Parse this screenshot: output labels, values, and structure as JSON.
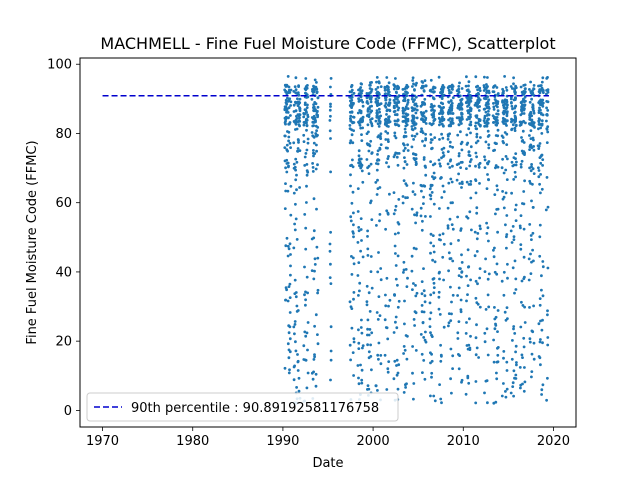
{
  "chart_data": {
    "type": "scatter",
    "title": "MACHMELL - Fine Fuel Moisture Code (FFMC), Scatterplot",
    "xlabel": "Date",
    "ylabel": "Fine Fuel Moisture Code (FFMC)",
    "xlim": [
      1967.5,
      2022.5
    ],
    "ylim": [
      -4.8,
      101.8
    ],
    "x_ticks": [
      1970,
      1980,
      1990,
      2000,
      2010,
      2020
    ],
    "y_ticks": [
      0,
      20,
      40,
      60,
      80,
      100
    ],
    "grid": false,
    "legend_position": "lower-left",
    "colors": {
      "points": "#1f77b4",
      "percentile_line": "#0000cd"
    },
    "percentile_line": {
      "label": "90th percentile : 90.89192581176758",
      "value": 90.89192581176758,
      "x_range": [
        1970,
        2019.5
      ]
    },
    "series": [
      {
        "name": "",
        "seasons": [
          {
            "start": 1990.2,
            "end": 1990.9
          },
          {
            "start": 1991.2,
            "end": 1991.9
          },
          {
            "start": 1992.3,
            "end": 1992.8
          },
          {
            "start": 1993.2,
            "end": 1993.9
          },
          {
            "start": 1995.2,
            "end": 1995.35
          },
          {
            "start": 1997.4,
            "end": 1997.9
          },
          {
            "start": 1998.3,
            "end": 1998.9
          },
          {
            "start": 1999.3,
            "end": 1999.9
          },
          {
            "start": 2000.3,
            "end": 2000.9
          },
          {
            "start": 2001.3,
            "end": 2001.9
          },
          {
            "start": 2002.3,
            "end": 2002.9
          },
          {
            "start": 2003.3,
            "end": 2003.9
          },
          {
            "start": 2004.3,
            "end": 2004.9
          },
          {
            "start": 2005.3,
            "end": 2005.9
          },
          {
            "start": 2006.3,
            "end": 2006.9
          },
          {
            "start": 2007.3,
            "end": 2007.9
          },
          {
            "start": 2008.3,
            "end": 2008.9
          },
          {
            "start": 2009.3,
            "end": 2009.9
          },
          {
            "start": 2010.3,
            "end": 2010.9
          },
          {
            "start": 2011.3,
            "end": 2011.9
          },
          {
            "start": 2012.3,
            "end": 2012.9
          },
          {
            "start": 2013.3,
            "end": 2013.9
          },
          {
            "start": 2014.3,
            "end": 2014.9
          },
          {
            "start": 2015.3,
            "end": 2015.9
          },
          {
            "start": 2016.3,
            "end": 2016.9
          },
          {
            "start": 2017.3,
            "end": 2017.9
          },
          {
            "start": 2018.3,
            "end": 2018.9
          },
          {
            "start": 2019.2,
            "end": 2019.4
          }
        ]
      }
    ]
  }
}
